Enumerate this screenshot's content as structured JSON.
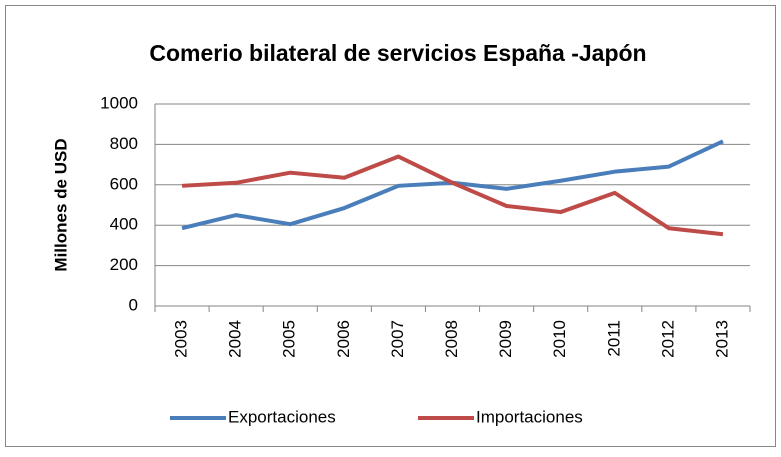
{
  "chart_data": {
    "type": "line",
    "title": "Comerio bilateral de servicios España -Japón",
    "y_label": "Millones de USD",
    "categories": [
      "2003",
      "2004",
      "2005",
      "2006",
      "2007",
      "2008",
      "2009",
      "2010",
      "2011",
      "2012",
      "2013"
    ],
    "series": [
      {
        "name": "Exportaciones",
        "color": "#4a7ebb",
        "values": [
          385,
          450,
          405,
          485,
          595,
          610,
          580,
          620,
          665,
          690,
          815
        ]
      },
      {
        "name": "Importaciones",
        "color": "#be4b48",
        "values": [
          595,
          610,
          660,
          635,
          740,
          610,
          495,
          465,
          560,
          385,
          355
        ]
      }
    ],
    "ylim": [
      0,
      1000
    ],
    "yticks": [
      0,
      200,
      400,
      600,
      800,
      1000
    ],
    "grid": true,
    "legend": "bottom"
  }
}
